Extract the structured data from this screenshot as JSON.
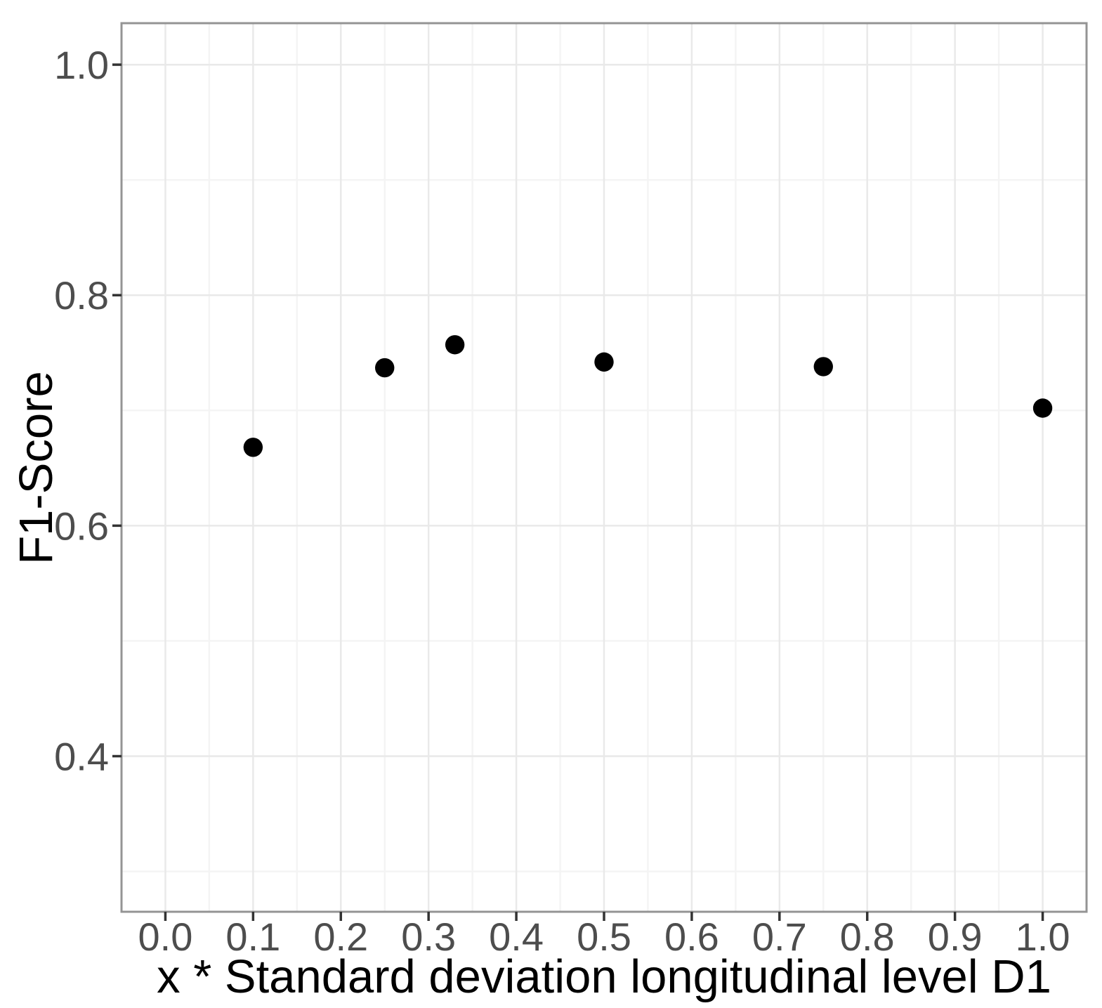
{
  "chart_data": {
    "type": "scatter",
    "title": "",
    "xlabel": "x * Standard deviation longitudinal level D1",
    "ylabel": "F1-Score",
    "legend_position": "none",
    "grid": true,
    "points": [
      {
        "x": 0.1,
        "y": 0.668
      },
      {
        "x": 0.25,
        "y": 0.737
      },
      {
        "x": 0.33,
        "y": 0.757
      },
      {
        "x": 0.5,
        "y": 0.742
      },
      {
        "x": 0.75,
        "y": 0.738
      },
      {
        "x": 1.0,
        "y": 0.702
      }
    ],
    "x_axis": {
      "min": -0.05,
      "max": 1.05,
      "major_ticks": [
        0.0,
        0.1,
        0.2,
        0.3,
        0.4,
        0.5,
        0.6,
        0.7,
        0.8,
        0.9,
        1.0
      ],
      "tick_labels": [
        "0.0",
        "0.1",
        "0.2",
        "0.3",
        "0.4",
        "0.5",
        "0.6",
        "0.7",
        "0.8",
        "0.9",
        "1.0"
      ],
      "minor_ticks": [
        0.05,
        0.15,
        0.25,
        0.35,
        0.45,
        0.55,
        0.65,
        0.75,
        0.85,
        0.95
      ]
    },
    "y_axis": {
      "min": 0.265,
      "max": 1.036,
      "major_ticks": [
        0.4,
        0.6,
        0.8,
        1.0
      ],
      "tick_labels": [
        "0.4",
        "0.6",
        "0.8",
        "1.0"
      ],
      "minor_ticks": [
        0.3,
        0.5,
        0.7,
        0.9
      ]
    },
    "colors": {
      "point": "#000000",
      "grid_major": "#e9e9e9",
      "grid_minor": "#f4f4f4",
      "panel_border": "#949494",
      "tick_mark": "#333333",
      "tick_label": "#4d4d4d",
      "axis_title": "#000000",
      "background": "#ffffff"
    },
    "point_radius_px": 13.7
  }
}
